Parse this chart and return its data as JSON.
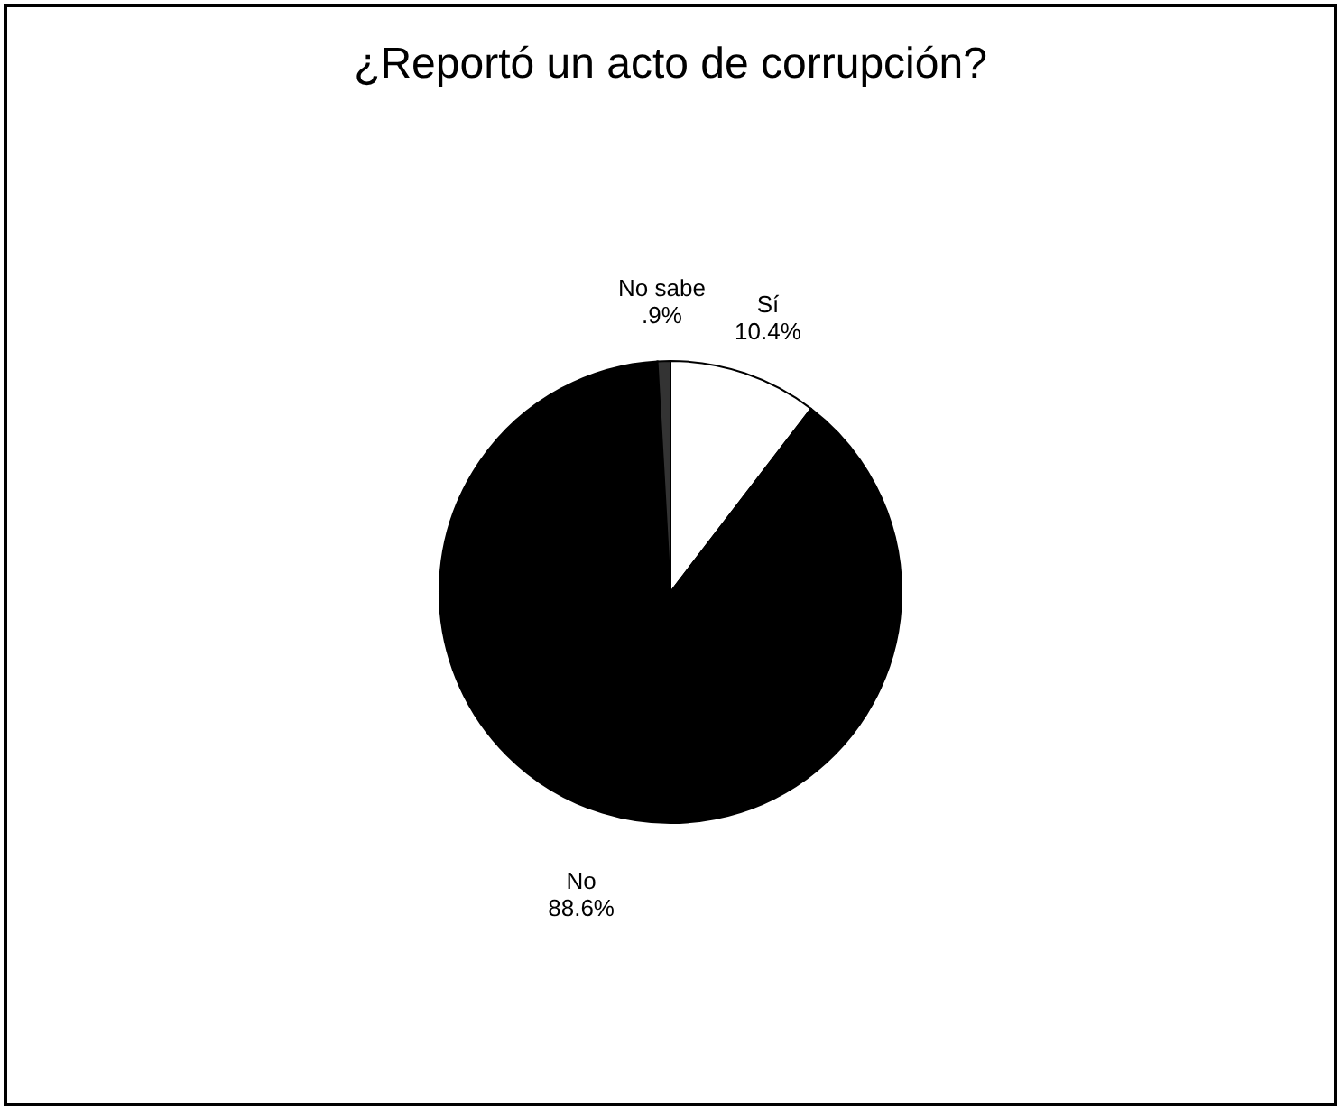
{
  "chart_data": {
    "type": "pie",
    "title": "¿Reportó un acto de corrupción?",
    "categories": [
      "Sí",
      "No",
      "No sabe"
    ],
    "values": [
      10.4,
      88.6,
      0.9
    ],
    "value_labels": [
      "10.4%",
      "88.6%",
      ".9%"
    ],
    "colors": [
      "#ffffff",
      "#000000",
      "#333333"
    ]
  }
}
